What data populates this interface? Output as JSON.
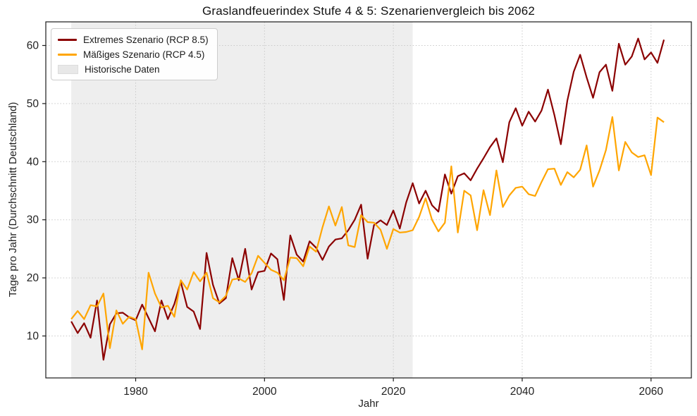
{
  "title": "Graslandfeuerindex Stufe 4 & 5: Szenarienvergleich bis 2062",
  "axes": {
    "x_label": "Jahr",
    "y_label": "Tage pro Jahr (Durchschnitt Deutschland)"
  },
  "legend": {
    "items": [
      {
        "label": "Extremes Szenario (RCP 8.5)",
        "type": "line",
        "color": "#8B0000"
      },
      {
        "label": "Mäßiges Szenario (RCP 4.5)",
        "type": "line",
        "color": "#FFA500"
      },
      {
        "label": "Historische Daten",
        "type": "patch",
        "color": "#E8E8E8"
      }
    ]
  },
  "chart_data": {
    "type": "line",
    "title": "Graslandfeuerindex Stufe 4 & 5: Szenarienvergleich bis 2062",
    "xlabel": "Jahr",
    "ylabel": "Tage pro Jahr (Durchschnitt Deutschland)",
    "grid": true,
    "legend_position": "upper left",
    "xlim": [
      1966,
      2066.3
    ],
    "ylim": [
      2.8,
      64.1
    ],
    "x_ticks": [
      1980,
      2000,
      2020,
      2040,
      2060
    ],
    "y_ticks": [
      10,
      20,
      30,
      40,
      50,
      60
    ],
    "historical_span": {
      "label": "Historische Daten",
      "start": 1970,
      "end": 2023,
      "color": "#9e9e9e",
      "opacity": 0.18
    },
    "x": [
      1970,
      1971,
      1972,
      1973,
      1974,
      1975,
      1976,
      1977,
      1978,
      1979,
      1980,
      1981,
      1982,
      1983,
      1984,
      1985,
      1986,
      1987,
      1988,
      1989,
      1990,
      1991,
      1992,
      1993,
      1994,
      1995,
      1996,
      1997,
      1998,
      1999,
      2000,
      2001,
      2002,
      2003,
      2004,
      2005,
      2006,
      2007,
      2008,
      2009,
      2010,
      2011,
      2012,
      2013,
      2014,
      2015,
      2016,
      2017,
      2018,
      2019,
      2020,
      2021,
      2022,
      2023,
      2024,
      2025,
      2026,
      2027,
      2028,
      2029,
      2030,
      2031,
      2032,
      2033,
      2034,
      2035,
      2036,
      2037,
      2038,
      2039,
      2040,
      2041,
      2042,
      2043,
      2044,
      2045,
      2046,
      2047,
      2048,
      2049,
      2050,
      2051,
      2052,
      2053,
      2054,
      2055,
      2056,
      2057,
      2058,
      2059,
      2060,
      2061,
      2062
    ],
    "series": [
      {
        "name": "Extremes Szenario (RCP 8.5)",
        "color": "#8B0000",
        "values": [
          12.5,
          10.5,
          12.2,
          9.7,
          16.1,
          5.9,
          12.0,
          13.9,
          14.0,
          13.2,
          12.7,
          15.4,
          13.1,
          10.8,
          16.1,
          12.9,
          15.5,
          19.3,
          15.0,
          14.2,
          11.2,
          24.3,
          18.8,
          15.6,
          16.5,
          23.4,
          19.6,
          25.0,
          18.0,
          21.0,
          21.2,
          24.2,
          23.2,
          16.2,
          27.3,
          24.0,
          22.8,
          26.3,
          25.2,
          23.1,
          25.4,
          26.6,
          26.8,
          28.2,
          30.0,
          32.6,
          23.3,
          29.1,
          29.9,
          29.1,
          31.6,
          28.5,
          33.0,
          36.3,
          32.8,
          35.0,
          32.5,
          31.4,
          37.8,
          34.5,
          37.5,
          38.0,
          36.8,
          38.8,
          40.6,
          42.5,
          44.0,
          39.9,
          46.8,
          49.2,
          46.2,
          48.6,
          46.9,
          48.8,
          52.4,
          48.0,
          43.0,
          50.5,
          55.5,
          58.4,
          54.5,
          51.0,
          55.4,
          56.7,
          52.2,
          60.3,
          56.7,
          58.1,
          61.2,
          57.6,
          58.8,
          57.0,
          61.0
        ]
      },
      {
        "name": "Mäßiges Szenario (RCP 4.5)",
        "color": "#FFA500",
        "values": [
          12.9,
          14.3,
          12.9,
          15.3,
          15.1,
          17.3,
          7.9,
          14.4,
          12.1,
          13.3,
          12.9,
          7.7,
          20.9,
          17.3,
          14.9,
          15.2,
          13.3,
          19.6,
          18.0,
          21.0,
          19.4,
          20.9,
          16.5,
          15.8,
          16.9,
          19.7,
          19.9,
          19.3,
          20.8,
          23.8,
          22.6,
          21.4,
          20.9,
          19.6,
          23.5,
          23.4,
          22.0,
          25.4,
          24.5,
          28.7,
          32.3,
          29.0,
          32.2,
          25.6,
          25.3,
          30.8,
          29.6,
          29.5,
          28.3,
          25.0,
          28.4,
          27.8,
          27.9,
          28.2,
          30.5,
          33.7,
          30.0,
          28.0,
          29.5,
          39.2,
          27.8,
          35.0,
          34.2,
          28.2,
          35.1,
          30.8,
          38.5,
          32.2,
          34.2,
          35.5,
          35.7,
          34.4,
          34.1,
          36.5,
          38.7,
          38.8,
          36.0,
          38.2,
          37.3,
          38.6,
          42.8,
          35.7,
          38.5,
          42.0,
          47.7,
          38.5,
          43.4,
          41.6,
          40.8,
          41.1,
          37.7,
          47.6,
          46.8
        ]
      }
    ]
  }
}
